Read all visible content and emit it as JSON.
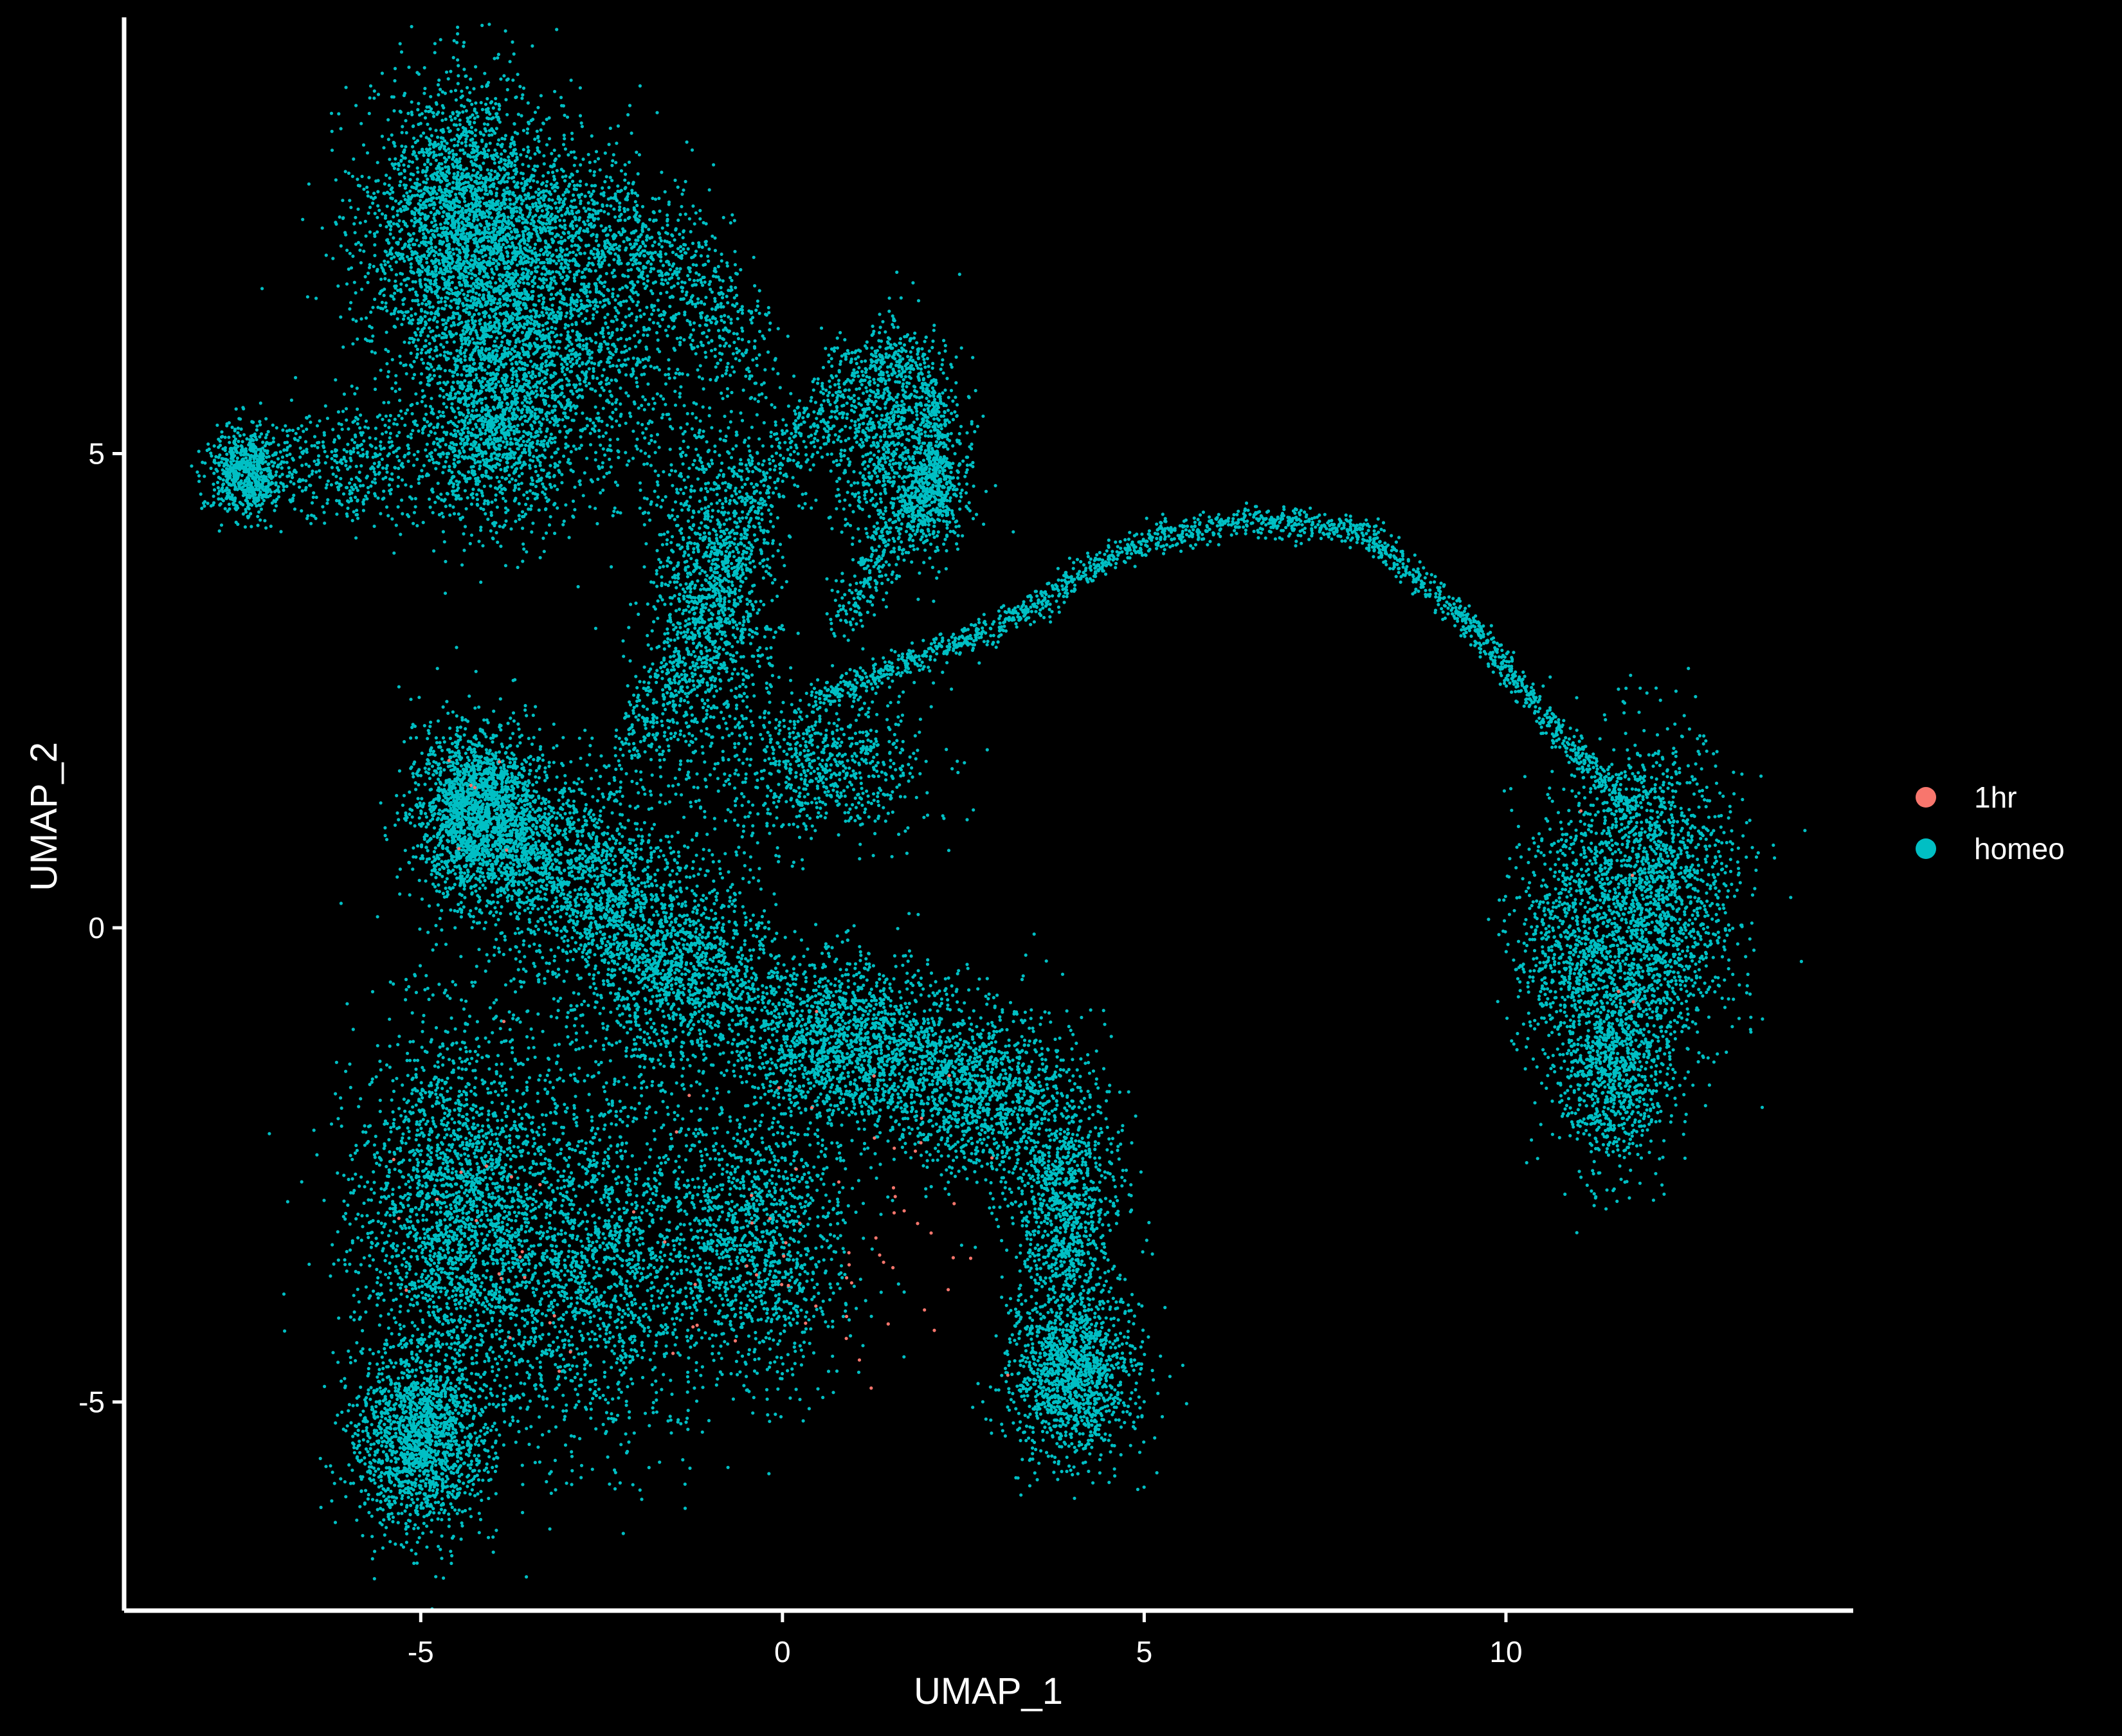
{
  "chart_data": {
    "type": "scatter",
    "title": "",
    "xlabel": "UMAP_1",
    "ylabel": "UMAP_2",
    "xlim": [
      -9.1,
      14.8
    ],
    "ylim": [
      -7.2,
      9.6
    ],
    "x_ticks": [
      -5,
      0,
      5,
      10
    ],
    "y_ticks": [
      -5,
      0,
      5
    ],
    "grid": false,
    "background": "#000000",
    "axis_color": "#FFFFFF",
    "legend": {
      "position": "right",
      "entries": [
        {
          "label": "1hr",
          "color": "#F8766D"
        },
        {
          "label": "homeo",
          "color": "#00BFC4"
        }
      ]
    },
    "series": [
      {
        "name": "homeo",
        "color": "#00BFC4",
        "approx_points": 30000,
        "clusters": [
          {
            "x": -4.4,
            "y": 7.4,
            "sx": 0.9,
            "sy": 1.0,
            "n": 2600
          },
          {
            "x": -3.2,
            "y": 6.4,
            "sx": 1.3,
            "sy": 1.1,
            "n": 2200
          },
          {
            "x": -4.0,
            "y": 5.2,
            "sx": 0.7,
            "sy": 0.7,
            "n": 1100
          },
          {
            "x": -7.4,
            "y": 4.8,
            "sx": 0.35,
            "sy": 0.3,
            "n": 700
          },
          {
            "x": -6.0,
            "y": 4.9,
            "sx": 0.8,
            "sy": 0.4,
            "n": 400
          },
          {
            "x": -1.0,
            "y": 3.5,
            "sx": 0.6,
            "sy": 1.3,
            "n": 1200
          },
          {
            "x": 1.5,
            "y": 5.1,
            "sx": 0.6,
            "sy": 0.8,
            "n": 900
          },
          {
            "x": 2.1,
            "y": 4.6,
            "sx": 0.3,
            "sy": 0.4,
            "n": 350
          },
          {
            "x": 0.6,
            "y": 1.7,
            "sx": 0.9,
            "sy": 0.5,
            "n": 700
          },
          {
            "x": -4.2,
            "y": 1.2,
            "sx": 0.6,
            "sy": 0.6,
            "n": 2000
          },
          {
            "x": -2.8,
            "y": 0.6,
            "sx": 0.9,
            "sy": 0.7,
            "n": 1000
          },
          {
            "x": -1.6,
            "y": -0.4,
            "sx": 1.0,
            "sy": 0.8,
            "n": 1200
          },
          {
            "x": 1.0,
            "y": -1.3,
            "sx": 1.1,
            "sy": 0.6,
            "n": 1500
          },
          {
            "x": 2.8,
            "y": -1.8,
            "sx": 0.9,
            "sy": 0.6,
            "n": 1100
          },
          {
            "x": -4.5,
            "y": -3.0,
            "sx": 0.9,
            "sy": 1.4,
            "n": 2400
          },
          {
            "x": -5.0,
            "y": -5.4,
            "sx": 0.6,
            "sy": 0.6,
            "n": 1600
          },
          {
            "x": -2.6,
            "y": -3.5,
            "sx": 1.0,
            "sy": 1.3,
            "n": 1600
          },
          {
            "x": -0.4,
            "y": -3.3,
            "sx": 0.9,
            "sy": 1.0,
            "n": 1300
          },
          {
            "x": 3.9,
            "y": -3.0,
            "sx": 0.5,
            "sy": 0.9,
            "n": 1000
          },
          {
            "x": 4.0,
            "y": -4.7,
            "sx": 0.6,
            "sy": 0.6,
            "n": 1300
          },
          {
            "x": 12.0,
            "y": 0.3,
            "sx": 0.8,
            "sy": 1.1,
            "n": 1900
          },
          {
            "x": 11.5,
            "y": -1.5,
            "sx": 0.5,
            "sy": 0.7,
            "n": 900
          },
          {
            "x": 10.8,
            "y": -0.2,
            "sx": 0.5,
            "sy": 0.9,
            "n": 600
          }
        ],
        "paths": [
          {
            "points": [
              [
                0.5,
                2.4
              ],
              [
                3.0,
                3.2
              ],
              [
                5.0,
                4.1
              ],
              [
                6.5,
                4.3
              ],
              [
                8.0,
                4.2
              ],
              [
                9.5,
                3.2
              ],
              [
                10.8,
                2.0
              ],
              [
                11.8,
                1.2
              ]
            ],
            "spread": 0.08,
            "n": 1800
          },
          {
            "points": [
              [
                -2.2,
                1.8
              ],
              [
                -1.2,
                3.0
              ],
              [
                -0.2,
                4.8
              ],
              [
                0.6,
                5.4
              ],
              [
                1.3,
                6.1
              ]
            ],
            "spread": 0.22,
            "n": 900
          },
          {
            "points": [
              [
                -4.0,
                1.0
              ],
              [
                -2.6,
                0.2
              ],
              [
                -1.6,
                -0.4
              ],
              [
                -0.2,
                -0.8
              ],
              [
                1.5,
                -1.0
              ]
            ],
            "spread": 0.3,
            "n": 800
          },
          {
            "points": [
              [
                -3.6,
                7.6
              ],
              [
                -2.6,
                7.5
              ],
              [
                -1.4,
                7.0
              ],
              [
                -0.4,
                6.0
              ]
            ],
            "spread": 0.3,
            "n": 700
          },
          {
            "points": [
              [
                1.4,
                6.1
              ],
              [
                2.0,
                5.8
              ],
              [
                2.2,
                5.0
              ],
              [
                1.6,
                4.2
              ],
              [
                0.8,
                3.2
              ]
            ],
            "spread": 0.15,
            "n": 600
          }
        ]
      },
      {
        "name": "1hr",
        "color": "#F8766D",
        "approx_points": 90,
        "clusters": [
          {
            "x": 0.6,
            "y": -3.0,
            "sx": 1.6,
            "sy": 1.2,
            "n": 60
          },
          {
            "x": -4.0,
            "y": -3.5,
            "sx": 1.0,
            "sy": 1.3,
            "n": 20
          },
          {
            "x": -4.2,
            "y": 1.2,
            "sx": 0.5,
            "sy": 0.5,
            "n": 6
          },
          {
            "x": 11.5,
            "y": 0.2,
            "sx": 0.5,
            "sy": 0.8,
            "n": 4
          }
        ]
      }
    ]
  }
}
